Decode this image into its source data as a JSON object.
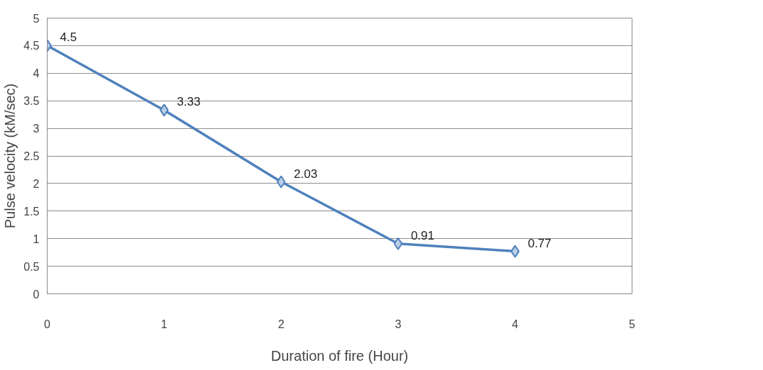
{
  "chart_data": {
    "type": "line",
    "xlabel": "Duration of fire (Hour)",
    "ylabel": "Pulse velocity (kM/sec)",
    "x": [
      0,
      1,
      2,
      3,
      4
    ],
    "series": [
      {
        "color": "#4f81bd",
        "values": [
          4.5,
          3.33,
          2.03,
          0.91,
          0.77
        ]
      }
    ],
    "xlim": [
      0,
      5
    ],
    "xticks": [
      0,
      1,
      2,
      3,
      4,
      5
    ],
    "ylim": [
      0,
      5
    ],
    "yticks": [
      0,
      0.5,
      1,
      1.5,
      2,
      2.5,
      3,
      3.5,
      4,
      4.5,
      5
    ],
    "grid": "y",
    "marker": "diamond",
    "line_style": "solid",
    "data_labels": true
  }
}
